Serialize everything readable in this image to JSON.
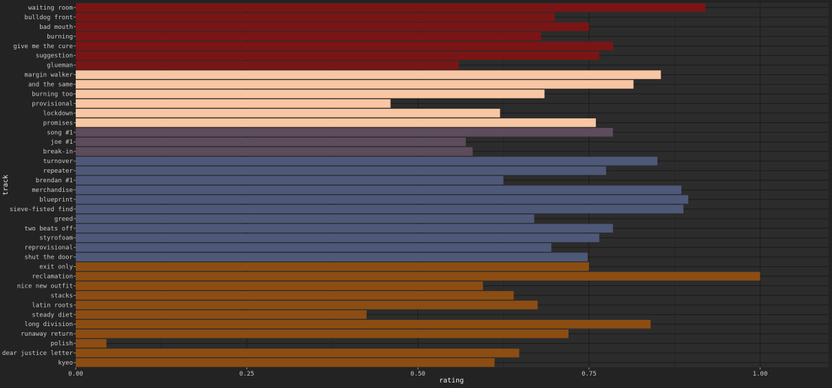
{
  "chart_data": {
    "type": "bar",
    "orientation": "horizontal",
    "xlabel": "rating",
    "ylabel": "track",
    "xlim": [
      0,
      1.1
    ],
    "x_ticks": [
      0.0,
      0.25,
      0.5,
      0.75,
      1.0
    ],
    "x_tick_labels": [
      "0.00",
      "0.25",
      "0.50",
      "0.75",
      "1.00"
    ],
    "grid": true,
    "legend": "none",
    "colors": {
      "background": "#232323",
      "panel": "#2c2c2c",
      "grid_major": "#1d1d1d",
      "grid_minor": "#262626",
      "text": "#c9c9c9",
      "axis_title": "#e8e8e8"
    },
    "groups": [
      {
        "color": "#7a1515",
        "tracks": [
          "waiting room",
          "bulldog front",
          "bad mouth",
          "burning",
          "give me the cure",
          "suggestion",
          "glueman"
        ],
        "values": [
          0.92,
          0.7,
          0.75,
          0.68,
          0.785,
          0.765,
          0.56
        ]
      },
      {
        "color": "#f8c6a2",
        "tracks": [
          "margin walker",
          "and the same",
          "burning too",
          "provisional",
          "lockdown",
          "promises"
        ],
        "values": [
          0.855,
          0.815,
          0.685,
          0.46,
          0.62,
          0.76
        ]
      },
      {
        "color": "#5c4c5c",
        "tracks": [
          "song #1",
          "joe #1",
          "break-in"
        ],
        "values": [
          0.785,
          0.57,
          0.58
        ]
      },
      {
        "color": "#4e5878",
        "tracks": [
          "turnover",
          "repeater",
          "brendan #1",
          "merchandise",
          "blueprint",
          "sieve-fisted find",
          "greed",
          "two beats off",
          "styrofoam",
          "reprovisional",
          "shut the door"
        ],
        "values": [
          0.85,
          0.775,
          0.625,
          0.885,
          0.895,
          0.888,
          0.67,
          0.785,
          0.765,
          0.695,
          0.748
        ]
      },
      {
        "color": "#8c4d13",
        "tracks": [
          "exit only",
          "reclamation",
          "nice new outfit",
          "stacks",
          "latin roots",
          "steady diet",
          "long division",
          "runaway return",
          "polish",
          "dear justice letter",
          "kyeo"
        ],
        "values": [
          0.75,
          1.0,
          0.595,
          0.64,
          0.675,
          0.425,
          0.84,
          0.72,
          0.045,
          0.648,
          0.612
        ]
      }
    ]
  }
}
